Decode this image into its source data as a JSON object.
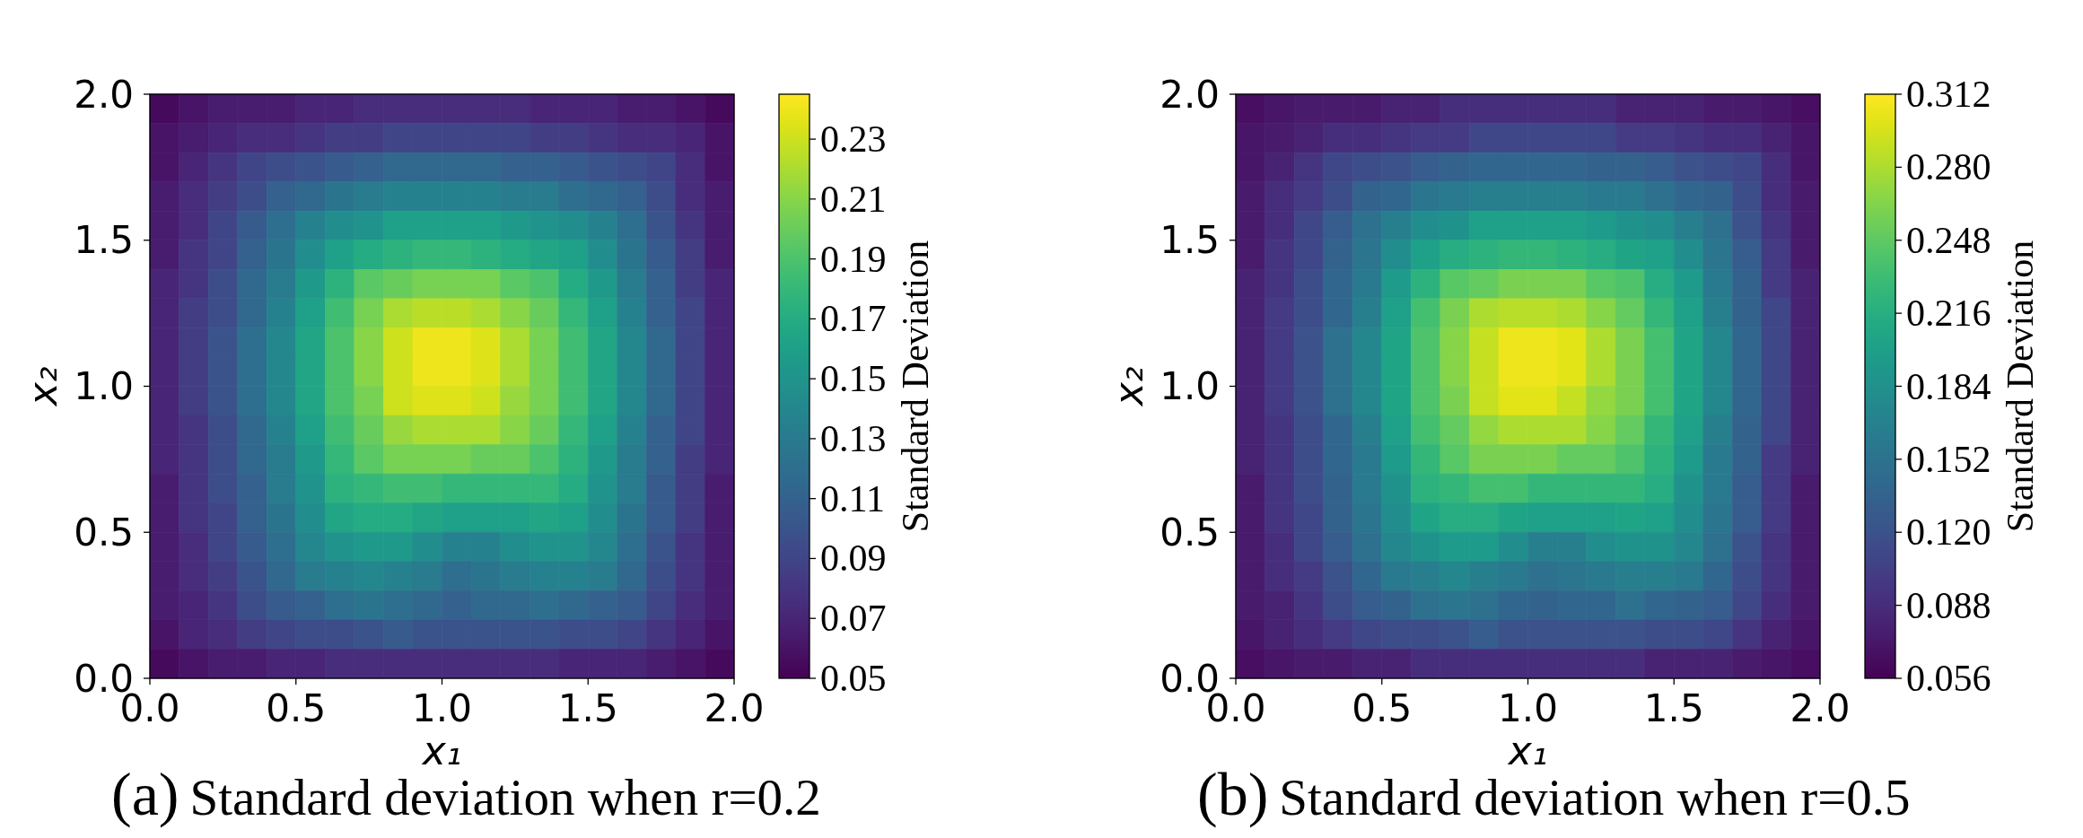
{
  "chart_data": [
    {
      "type": "heatmap",
      "title": "(a)Standard deviation when r=0.2",
      "xlabel": "x₁",
      "ylabel": "x₂",
      "clabel": "Standard Deviation",
      "xlim": [
        0,
        2
      ],
      "ylim": [
        0,
        2
      ],
      "xticks": [
        {
          "value": 0,
          "label": "0.0"
        },
        {
          "value": 0.5,
          "label": "0.5"
        },
        {
          "value": 1,
          "label": "1.0"
        },
        {
          "value": 1.5,
          "label": "1.5"
        },
        {
          "value": 2,
          "label": "2.0"
        }
      ],
      "yticks": [
        {
          "value": 0,
          "label": "0.0"
        },
        {
          "value": 0.5,
          "label": "0.5"
        },
        {
          "value": 1,
          "label": "1.0"
        },
        {
          "value": 1.5,
          "label": "1.5"
        },
        {
          "value": 2,
          "label": "2.0"
        }
      ],
      "clim": [
        0.05,
        0.245
      ],
      "cticks": [
        0.05,
        0.07,
        0.09,
        0.11,
        0.13,
        0.15,
        0.17,
        0.19,
        0.21,
        0.23
      ],
      "cells": [
        [
          0.055,
          0.06,
          0.065,
          0.065,
          0.065,
          0.07,
          0.07,
          0.075,
          0.075,
          0.075,
          0.075,
          0.075,
          0.075,
          0.07,
          0.07,
          0.07,
          0.065,
          0.065,
          0.06,
          0.055
        ],
        [
          0.06,
          0.065,
          0.07,
          0.075,
          0.075,
          0.08,
          0.085,
          0.085,
          0.09,
          0.09,
          0.09,
          0.09,
          0.09,
          0.085,
          0.085,
          0.08,
          0.075,
          0.075,
          0.07,
          0.06
        ],
        [
          0.06,
          0.07,
          0.08,
          0.09,
          0.095,
          0.1,
          0.105,
          0.11,
          0.115,
          0.115,
          0.115,
          0.115,
          0.11,
          0.11,
          0.105,
          0.1,
          0.095,
          0.09,
          0.075,
          0.06
        ],
        [
          0.065,
          0.075,
          0.085,
          0.095,
          0.11,
          0.115,
          0.125,
          0.13,
          0.135,
          0.135,
          0.135,
          0.135,
          0.13,
          0.13,
          0.12,
          0.115,
          0.11,
          0.095,
          0.075,
          0.065
        ],
        [
          0.065,
          0.075,
          0.09,
          0.105,
          0.12,
          0.135,
          0.145,
          0.15,
          0.16,
          0.16,
          0.16,
          0.16,
          0.155,
          0.15,
          0.145,
          0.135,
          0.12,
          0.1,
          0.08,
          0.065
        ],
        [
          0.065,
          0.08,
          0.09,
          0.11,
          0.125,
          0.145,
          0.16,
          0.17,
          0.175,
          0.18,
          0.18,
          0.175,
          0.17,
          0.165,
          0.16,
          0.145,
          0.125,
          0.105,
          0.085,
          0.065
        ],
        [
          0.07,
          0.08,
          0.095,
          0.115,
          0.13,
          0.155,
          0.175,
          0.195,
          0.2,
          0.205,
          0.205,
          0.205,
          0.195,
          0.19,
          0.17,
          0.155,
          0.13,
          0.11,
          0.085,
          0.07
        ],
        [
          0.07,
          0.085,
          0.095,
          0.115,
          0.135,
          0.16,
          0.185,
          0.205,
          0.22,
          0.225,
          0.225,
          0.22,
          0.21,
          0.2,
          0.18,
          0.16,
          0.135,
          0.11,
          0.09,
          0.07
        ],
        [
          0.07,
          0.085,
          0.1,
          0.12,
          0.14,
          0.165,
          0.19,
          0.21,
          0.23,
          0.24,
          0.24,
          0.235,
          0.22,
          0.205,
          0.185,
          0.165,
          0.14,
          0.115,
          0.09,
          0.07
        ],
        [
          0.07,
          0.085,
          0.1,
          0.12,
          0.14,
          0.165,
          0.19,
          0.21,
          0.23,
          0.24,
          0.24,
          0.235,
          0.22,
          0.205,
          0.185,
          0.165,
          0.14,
          0.115,
          0.09,
          0.07
        ],
        [
          0.07,
          0.085,
          0.1,
          0.12,
          0.14,
          0.165,
          0.19,
          0.205,
          0.23,
          0.235,
          0.235,
          0.23,
          0.215,
          0.205,
          0.185,
          0.165,
          0.14,
          0.115,
          0.09,
          0.07
        ],
        [
          0.07,
          0.08,
          0.095,
          0.115,
          0.135,
          0.16,
          0.185,
          0.2,
          0.215,
          0.22,
          0.22,
          0.22,
          0.21,
          0.2,
          0.18,
          0.16,
          0.135,
          0.11,
          0.09,
          0.07
        ],
        [
          0.07,
          0.08,
          0.095,
          0.115,
          0.13,
          0.155,
          0.18,
          0.195,
          0.205,
          0.205,
          0.205,
          0.2,
          0.2,
          0.19,
          0.175,
          0.155,
          0.13,
          0.11,
          0.085,
          0.07
        ],
        [
          0.065,
          0.08,
          0.095,
          0.11,
          0.13,
          0.15,
          0.175,
          0.18,
          0.185,
          0.185,
          0.18,
          0.18,
          0.18,
          0.18,
          0.17,
          0.15,
          0.13,
          0.105,
          0.085,
          0.065
        ],
        [
          0.065,
          0.08,
          0.09,
          0.11,
          0.125,
          0.145,
          0.165,
          0.17,
          0.17,
          0.165,
          0.16,
          0.16,
          0.16,
          0.165,
          0.16,
          0.145,
          0.125,
          0.105,
          0.085,
          0.065
        ],
        [
          0.065,
          0.075,
          0.09,
          0.105,
          0.12,
          0.14,
          0.15,
          0.155,
          0.155,
          0.145,
          0.135,
          0.135,
          0.145,
          0.15,
          0.15,
          0.14,
          0.12,
          0.1,
          0.08,
          0.065
        ],
        [
          0.065,
          0.075,
          0.085,
          0.1,
          0.115,
          0.13,
          0.135,
          0.14,
          0.135,
          0.13,
          0.12,
          0.125,
          0.13,
          0.135,
          0.135,
          0.13,
          0.115,
          0.095,
          0.08,
          0.065
        ],
        [
          0.065,
          0.07,
          0.08,
          0.095,
          0.105,
          0.11,
          0.12,
          0.125,
          0.12,
          0.115,
          0.11,
          0.115,
          0.115,
          0.12,
          0.115,
          0.11,
          0.105,
          0.09,
          0.075,
          0.065
        ],
        [
          0.06,
          0.07,
          0.075,
          0.085,
          0.09,
          0.095,
          0.095,
          0.1,
          0.105,
          0.1,
          0.1,
          0.1,
          0.1,
          0.1,
          0.095,
          0.095,
          0.09,
          0.08,
          0.07,
          0.06
        ],
        [
          0.055,
          0.06,
          0.065,
          0.065,
          0.07,
          0.07,
          0.075,
          0.075,
          0.075,
          0.075,
          0.075,
          0.075,
          0.075,
          0.075,
          0.07,
          0.07,
          0.07,
          0.065,
          0.06,
          0.055
        ]
      ]
    },
    {
      "type": "heatmap",
      "title": "(b)Standard deviation when r=0.5",
      "xlabel": "x₁",
      "ylabel": "x₂",
      "clabel": "Standard Deviation",
      "xlim": [
        0,
        2
      ],
      "ylim": [
        0,
        2
      ],
      "xticks": [
        {
          "value": 0,
          "label": "0.0"
        },
        {
          "value": 0.5,
          "label": "0.5"
        },
        {
          "value": 1,
          "label": "1.0"
        },
        {
          "value": 1.5,
          "label": "1.5"
        },
        {
          "value": 2,
          "label": "2.0"
        }
      ],
      "yticks": [
        {
          "value": 0,
          "label": "0.0"
        },
        {
          "value": 0.5,
          "label": "0.5"
        },
        {
          "value": 1,
          "label": "1.0"
        },
        {
          "value": 1.5,
          "label": "1.5"
        },
        {
          "value": 2,
          "label": "2.0"
        }
      ],
      "clim": [
        0.056,
        0.312
      ],
      "cticks": [
        0.056,
        0.088,
        {
          "value": 0.12,
          "label": "0.120"
        },
        0.152,
        0.184,
        0.216,
        0.248,
        {
          "value": 0.28,
          "label": "0.280"
        },
        0.312
      ],
      "cells": [
        [
          0.065,
          0.07,
          0.075,
          0.075,
          0.075,
          0.08,
          0.08,
          0.09,
          0.09,
          0.09,
          0.09,
          0.09,
          0.09,
          0.08,
          0.08,
          0.08,
          0.075,
          0.075,
          0.07,
          0.065
        ],
        [
          0.07,
          0.075,
          0.08,
          0.09,
          0.09,
          0.095,
          0.1,
          0.1,
          0.11,
          0.11,
          0.11,
          0.11,
          0.11,
          0.1,
          0.1,
          0.095,
          0.09,
          0.09,
          0.08,
          0.07
        ],
        [
          0.07,
          0.08,
          0.095,
          0.11,
          0.115,
          0.12,
          0.13,
          0.135,
          0.14,
          0.14,
          0.14,
          0.14,
          0.135,
          0.135,
          0.13,
          0.12,
          0.115,
          0.11,
          0.09,
          0.07
        ],
        [
          0.075,
          0.09,
          0.1,
          0.115,
          0.135,
          0.14,
          0.155,
          0.16,
          0.165,
          0.165,
          0.165,
          0.165,
          0.16,
          0.16,
          0.15,
          0.14,
          0.135,
          0.115,
          0.09,
          0.075
        ],
        [
          0.075,
          0.09,
          0.11,
          0.13,
          0.15,
          0.165,
          0.18,
          0.185,
          0.2,
          0.2,
          0.2,
          0.2,
          0.195,
          0.185,
          0.18,
          0.165,
          0.15,
          0.12,
          0.095,
          0.075
        ],
        [
          0.075,
          0.095,
          0.11,
          0.135,
          0.155,
          0.18,
          0.2,
          0.215,
          0.22,
          0.225,
          0.225,
          0.22,
          0.215,
          0.205,
          0.2,
          0.18,
          0.155,
          0.13,
          0.1,
          0.075
        ],
        [
          0.08,
          0.095,
          0.115,
          0.14,
          0.16,
          0.195,
          0.22,
          0.245,
          0.25,
          0.26,
          0.26,
          0.26,
          0.245,
          0.24,
          0.215,
          0.195,
          0.16,
          0.135,
          0.1,
          0.08
        ],
        [
          0.08,
          0.1,
          0.115,
          0.14,
          0.165,
          0.2,
          0.235,
          0.26,
          0.28,
          0.285,
          0.285,
          0.28,
          0.265,
          0.25,
          0.225,
          0.2,
          0.165,
          0.135,
          0.11,
          0.08
        ],
        [
          0.08,
          0.1,
          0.12,
          0.15,
          0.175,
          0.205,
          0.24,
          0.265,
          0.29,
          0.305,
          0.305,
          0.3,
          0.28,
          0.26,
          0.235,
          0.205,
          0.175,
          0.14,
          0.11,
          0.08
        ],
        [
          0.08,
          0.1,
          0.12,
          0.15,
          0.175,
          0.205,
          0.24,
          0.265,
          0.29,
          0.305,
          0.305,
          0.3,
          0.28,
          0.26,
          0.235,
          0.205,
          0.175,
          0.14,
          0.11,
          0.08
        ],
        [
          0.08,
          0.1,
          0.12,
          0.15,
          0.175,
          0.205,
          0.24,
          0.26,
          0.29,
          0.3,
          0.3,
          0.29,
          0.27,
          0.26,
          0.235,
          0.205,
          0.175,
          0.14,
          0.11,
          0.08
        ],
        [
          0.08,
          0.095,
          0.115,
          0.14,
          0.165,
          0.2,
          0.235,
          0.25,
          0.27,
          0.28,
          0.28,
          0.28,
          0.265,
          0.25,
          0.225,
          0.2,
          0.165,
          0.135,
          0.11,
          0.08
        ],
        [
          0.08,
          0.095,
          0.115,
          0.14,
          0.16,
          0.195,
          0.225,
          0.245,
          0.26,
          0.26,
          0.26,
          0.25,
          0.25,
          0.24,
          0.22,
          0.195,
          0.16,
          0.135,
          0.1,
          0.08
        ],
        [
          0.075,
          0.095,
          0.115,
          0.135,
          0.16,
          0.185,
          0.22,
          0.225,
          0.235,
          0.235,
          0.225,
          0.225,
          0.225,
          0.225,
          0.215,
          0.185,
          0.16,
          0.13,
          0.1,
          0.075
        ],
        [
          0.075,
          0.095,
          0.11,
          0.135,
          0.155,
          0.18,
          0.205,
          0.215,
          0.215,
          0.205,
          0.2,
          0.2,
          0.2,
          0.205,
          0.2,
          0.18,
          0.155,
          0.13,
          0.1,
          0.075
        ],
        [
          0.075,
          0.09,
          0.11,
          0.13,
          0.15,
          0.175,
          0.185,
          0.195,
          0.195,
          0.18,
          0.165,
          0.165,
          0.18,
          0.185,
          0.185,
          0.175,
          0.15,
          0.12,
          0.095,
          0.075
        ],
        [
          0.075,
          0.09,
          0.1,
          0.12,
          0.14,
          0.16,
          0.165,
          0.175,
          0.165,
          0.16,
          0.15,
          0.155,
          0.16,
          0.165,
          0.165,
          0.16,
          0.14,
          0.115,
          0.095,
          0.075
        ],
        [
          0.075,
          0.08,
          0.095,
          0.115,
          0.13,
          0.135,
          0.15,
          0.155,
          0.15,
          0.14,
          0.135,
          0.14,
          0.14,
          0.15,
          0.14,
          0.135,
          0.13,
          0.11,
          0.09,
          0.075
        ],
        [
          0.07,
          0.08,
          0.09,
          0.1,
          0.11,
          0.115,
          0.115,
          0.12,
          0.13,
          0.12,
          0.12,
          0.12,
          0.12,
          0.12,
          0.115,
          0.115,
          0.11,
          0.095,
          0.08,
          0.07
        ],
        [
          0.065,
          0.07,
          0.075,
          0.075,
          0.08,
          0.08,
          0.09,
          0.09,
          0.09,
          0.09,
          0.09,
          0.09,
          0.09,
          0.09,
          0.08,
          0.08,
          0.08,
          0.075,
          0.07,
          0.065
        ]
      ]
    }
  ]
}
